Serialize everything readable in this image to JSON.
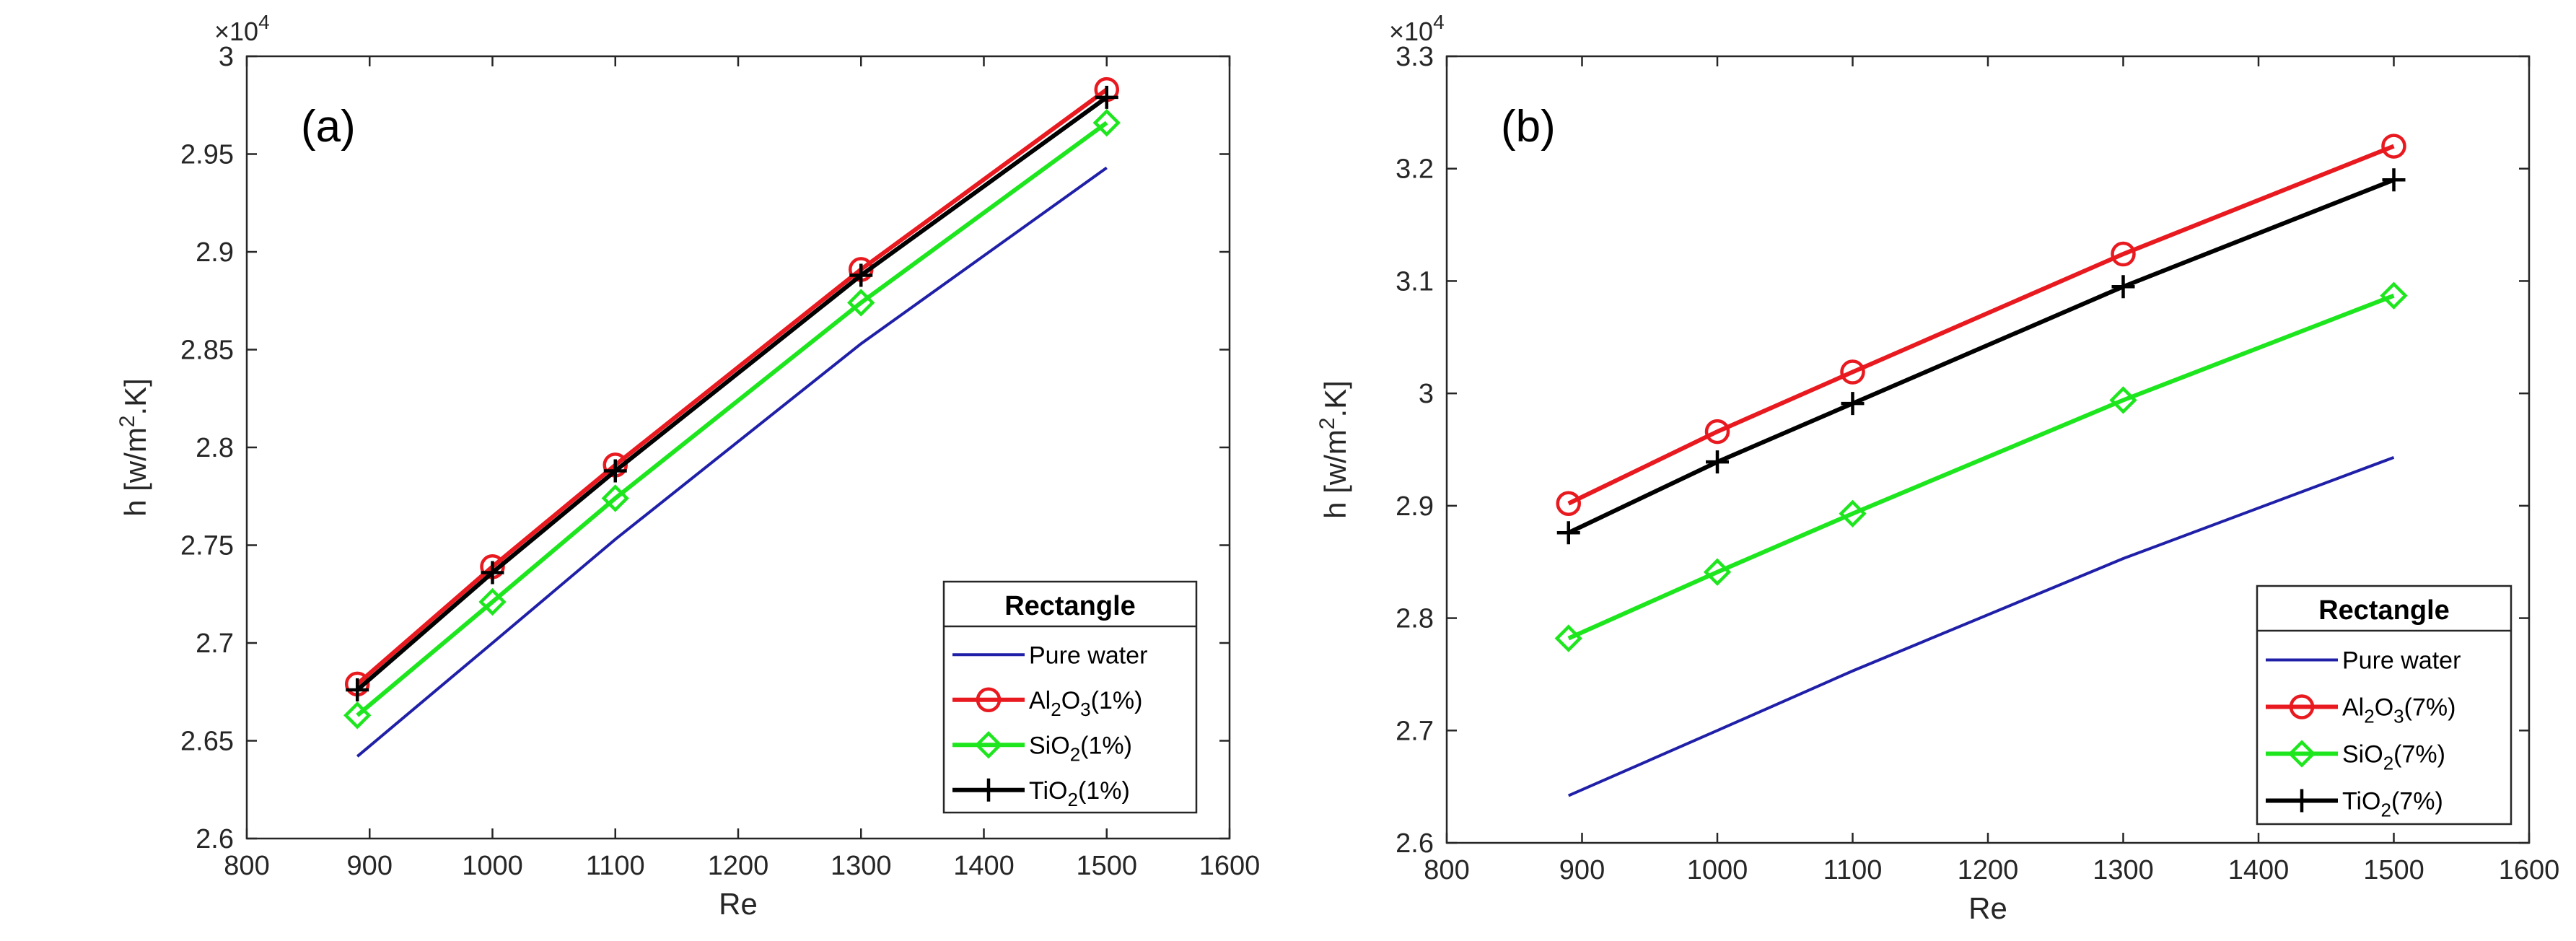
{
  "chart_data": [
    {
      "type": "line",
      "panel_label": "(a)",
      "xlabel": "Re",
      "ylabel": "h [w/m",
      "ylabel_sup": "2",
      "ylabel_end": ".K]",
      "exponent_base": "×10",
      "exponent_power": "4",
      "xlim": [
        800,
        1600
      ],
      "ylim": [
        2.6,
        3.0
      ],
      "xticks": [
        800,
        900,
        1000,
        1100,
        1200,
        1300,
        1400,
        1500,
        1600
      ],
      "xtick_labels": [
        "800",
        "900",
        "1000",
        "1100",
        "1200",
        "1300",
        "1400",
        "1500",
        "1600"
      ],
      "yticks": [
        2.6,
        2.65,
        2.7,
        2.75,
        2.8,
        2.85,
        2.9,
        2.95,
        3.0
      ],
      "ytick_labels": [
        "2.6",
        "2.65",
        "2.7",
        "2.75",
        "2.8",
        "2.85",
        "2.9",
        "2.95",
        "3"
      ],
      "legend_title": "Rectangle",
      "legend_position": "bottom-right",
      "x": [
        890,
        1000,
        1100,
        1300,
        1500
      ],
      "series": [
        {
          "name": "Pure water",
          "color": "#1f1fa8",
          "marker": "none",
          "values": [
            2.642,
            2.7,
            2.753,
            2.853,
            2.943
          ],
          "label_parts": [
            [
              "Pure water",
              ""
            ]
          ]
        },
        {
          "name": "Al2O3(1%)",
          "color": "#e8191f",
          "marker": "circle",
          "values": [
            2.679,
            2.739,
            2.791,
            2.891,
            2.983
          ],
          "label_parts": [
            [
              "Al",
              ""
            ],
            [
              "2",
              "sub"
            ],
            [
              "O",
              ""
            ],
            [
              "3",
              "sub"
            ],
            [
              "(1%)",
              ""
            ]
          ]
        },
        {
          "name": "SiO2(1%)",
          "color": "#1ee61e",
          "marker": "diamond",
          "values": [
            2.663,
            2.721,
            2.774,
            2.874,
            2.966
          ],
          "label_parts": [
            [
              "SiO",
              ""
            ],
            [
              "2",
              "sub"
            ],
            [
              "(1%)",
              ""
            ]
          ]
        },
        {
          "name": "TiO2(1%)",
          "color": "#000000",
          "marker": "plus",
          "values": [
            2.676,
            2.736,
            2.788,
            2.888,
            2.979
          ],
          "label_parts": [
            [
              "TiO",
              ""
            ],
            [
              "2",
              "sub"
            ],
            [
              "(1%)",
              ""
            ]
          ]
        }
      ]
    },
    {
      "type": "line",
      "panel_label": "(b)",
      "xlabel": "Re",
      "ylabel": "h [w/m",
      "ylabel_sup": "2",
      "ylabel_end": ".K]",
      "exponent_base": "×10",
      "exponent_power": "4",
      "xlim": [
        800,
        1600
      ],
      "ylim": [
        2.6,
        3.3
      ],
      "xticks": [
        800,
        900,
        1000,
        1100,
        1200,
        1300,
        1400,
        1500,
        1600
      ],
      "xtick_labels": [
        "800",
        "900",
        "1000",
        "1100",
        "1200",
        "1300",
        "1400",
        "1500",
        "1600"
      ],
      "yticks": [
        2.6,
        2.7,
        2.8,
        2.9,
        3.0,
        3.1,
        3.2,
        3.3
      ],
      "ytick_labels": [
        "2.6",
        "2.7",
        "2.8",
        "2.9",
        "3",
        "3.1",
        "3.2",
        "3.3"
      ],
      "legend_title": "Rectangle",
      "legend_position": "bottom-right",
      "x": [
        890,
        1000,
        1100,
        1300,
        1500
      ],
      "series": [
        {
          "name": "Pure water",
          "color": "#1f1fa8",
          "marker": "none",
          "values": [
            2.642,
            2.7,
            2.753,
            2.853,
            2.943
          ],
          "label_parts": [
            [
              "Pure water",
              ""
            ]
          ]
        },
        {
          "name": "Al2O3(7%)",
          "color": "#e8191f",
          "marker": "circle",
          "values": [
            2.902,
            2.966,
            3.019,
            3.124,
            3.22
          ],
          "label_parts": [
            [
              "Al",
              ""
            ],
            [
              "2",
              "sub"
            ],
            [
              "O",
              ""
            ],
            [
              "3",
              "sub"
            ],
            [
              "(7%)",
              ""
            ]
          ]
        },
        {
          "name": "SiO2(7%)",
          "color": "#1ee61e",
          "marker": "diamond",
          "values": [
            2.782,
            2.841,
            2.893,
            2.994,
            3.087
          ],
          "label_parts": [
            [
              "SiO",
              ""
            ],
            [
              "2",
              "sub"
            ],
            [
              "(7%)",
              ""
            ]
          ]
        },
        {
          "name": "TiO2(7%)",
          "color": "#000000",
          "marker": "plus",
          "values": [
            2.876,
            2.939,
            2.991,
            3.095,
            3.19
          ],
          "label_parts": [
            [
              "TiO",
              ""
            ],
            [
              "2",
              "sub"
            ],
            [
              "(7%)",
              ""
            ]
          ]
        }
      ]
    }
  ]
}
